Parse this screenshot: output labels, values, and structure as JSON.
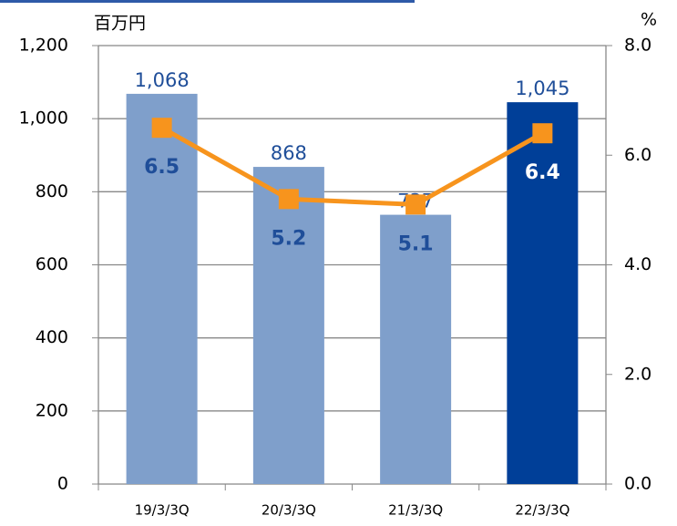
{
  "chart_data": {
    "type": "combo",
    "y_label": "百万円",
    "y2_label": "%",
    "categories": [
      "19/3/3Q",
      "20/3/3Q",
      "21/3/3Q",
      "22/3/3Q"
    ],
    "series": [
      {
        "type": "bar",
        "values": [
          1068,
          868,
          737,
          1045
        ],
        "value_labels": [
          "1,068",
          "868",
          "737",
          "1,045"
        ],
        "colors": [
          "#7f9fcb",
          "#7f9fcb",
          "#7f9fcb",
          "#003f98"
        ],
        "label_color": "#1f4e99"
      },
      {
        "type": "line",
        "axis": "y2",
        "values": [
          6.5,
          5.2,
          5.1,
          6.4
        ],
        "color": "#f7941d",
        "label_colors": [
          "#1f4e99",
          "#1f4e99",
          "#1f4e99",
          "#ffffff"
        ]
      }
    ],
    "ylim": [
      0,
      1200
    ],
    "yticks": [
      0,
      200,
      400,
      600,
      800,
      {
        "value": 1000,
        "label": "1,000"
      },
      {
        "value": 1200,
        "label": "1,200"
      }
    ],
    "y2lim": [
      0,
      8
    ],
    "y2ticks": [
      {
        "value": 0,
        "label": "0.0"
      },
      {
        "value": 2,
        "label": "2.0"
      },
      {
        "value": 4,
        "label": "4.0"
      },
      {
        "value": 6,
        "label": "6.0"
      },
      {
        "value": 8,
        "label": "8.0"
      }
    ],
    "grid": true
  }
}
